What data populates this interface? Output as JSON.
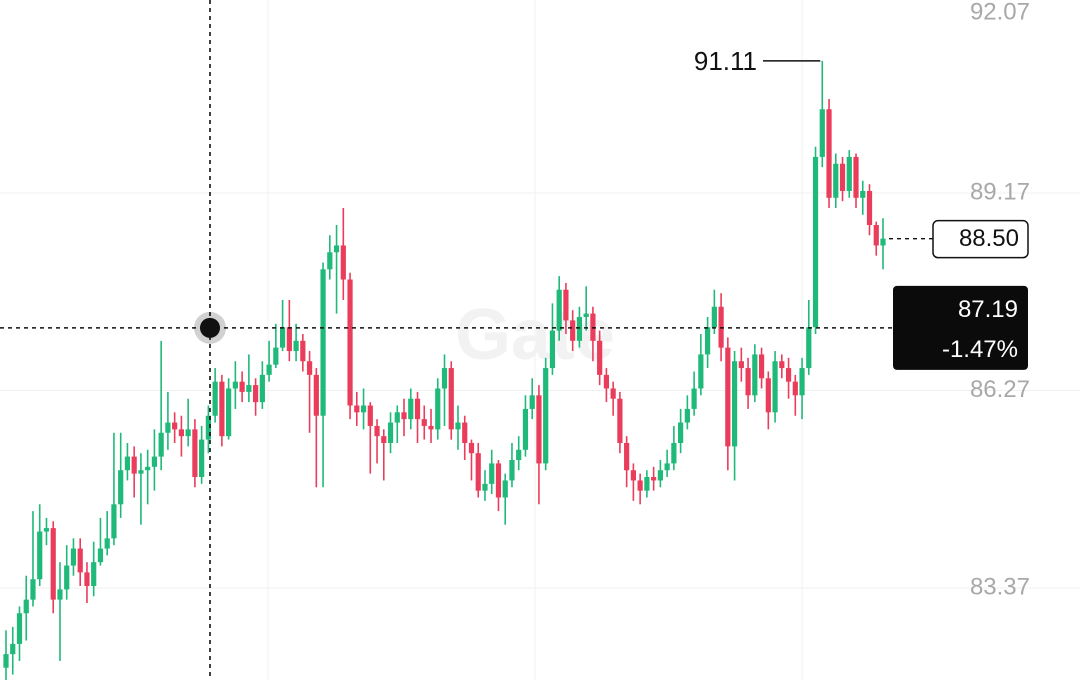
{
  "chart_data": {
    "type": "candlestick",
    "up_color": "#1fb97a",
    "down_color": "#ea3d5c",
    "ylim": [
      82.02,
      92.07
    ],
    "yticks": [
      92.07,
      89.17,
      86.27,
      83.37
    ],
    "grid": true,
    "watermark": "Gate",
    "max_label": 91.11,
    "last_price": {
      "value": 88.5,
      "label": "88.50"
    },
    "crosshair": {
      "price": 87.19,
      "change": {
        "value": -1.47,
        "label": "-1.47%"
      }
    },
    "candles": [
      [
        82.2,
        82.75,
        82.0,
        82.4
      ],
      [
        82.4,
        82.8,
        82.1,
        82.55
      ],
      [
        82.55,
        83.1,
        82.3,
        83.0
      ],
      [
        83.0,
        83.55,
        82.6,
        83.2
      ],
      [
        83.2,
        84.5,
        83.1,
        83.5
      ],
      [
        83.5,
        84.6,
        83.4,
        84.2
      ],
      [
        84.2,
        84.4,
        84.0,
        84.25
      ],
      [
        84.25,
        84.35,
        83.0,
        83.2
      ],
      [
        83.2,
        83.75,
        82.3,
        83.35
      ],
      [
        83.35,
        84.0,
        83.2,
        83.7
      ],
      [
        83.7,
        84.1,
        83.55,
        83.95
      ],
      [
        83.95,
        84.1,
        83.4,
        83.6
      ],
      [
        83.6,
        83.75,
        83.15,
        83.4
      ],
      [
        83.4,
        84.05,
        83.25,
        83.75
      ],
      [
        83.75,
        84.4,
        83.7,
        83.95
      ],
      [
        83.95,
        84.5,
        83.85,
        84.1
      ],
      [
        84.1,
        85.65,
        84.0,
        84.6
      ],
      [
        84.6,
        85.65,
        84.4,
        85.1
      ],
      [
        85.1,
        85.5,
        84.95,
        85.3
      ],
      [
        85.3,
        85.45,
        84.7,
        85.05
      ],
      [
        85.05,
        85.35,
        84.3,
        85.1
      ],
      [
        85.1,
        85.4,
        84.6,
        85.15
      ],
      [
        85.15,
        85.7,
        84.8,
        85.3
      ],
      [
        85.3,
        87.0,
        85.1,
        85.65
      ],
      [
        85.65,
        86.25,
        85.4,
        85.8
      ],
      [
        85.8,
        85.95,
        85.5,
        85.7
      ],
      [
        85.7,
        85.9,
        85.3,
        85.6
      ],
      [
        85.6,
        86.15,
        85.45,
        85.7
      ],
      [
        85.7,
        85.85,
        84.85,
        85.0
      ],
      [
        85.0,
        85.75,
        84.9,
        85.55
      ],
      [
        85.55,
        86.05,
        85.35,
        85.9
      ],
      [
        85.9,
        86.6,
        85.8,
        86.4
      ],
      [
        86.4,
        86.5,
        85.45,
        85.6
      ],
      [
        85.6,
        86.45,
        85.55,
        86.3
      ],
      [
        86.3,
        86.7,
        86.0,
        86.4
      ],
      [
        86.4,
        86.55,
        86.1,
        86.25
      ],
      [
        86.25,
        86.8,
        86.1,
        86.35
      ],
      [
        86.35,
        86.45,
        85.9,
        86.1
      ],
      [
        86.1,
        86.7,
        86.0,
        86.5
      ],
      [
        86.5,
        87.0,
        86.4,
        86.65
      ],
      [
        86.65,
        87.25,
        86.6,
        86.9
      ],
      [
        86.9,
        87.6,
        86.85,
        87.2
      ],
      [
        87.2,
        87.6,
        86.7,
        86.85
      ],
      [
        86.85,
        87.25,
        86.7,
        87.0
      ],
      [
        87.0,
        87.1,
        86.55,
        86.7
      ],
      [
        86.7,
        86.85,
        85.65,
        86.5
      ],
      [
        86.5,
        86.6,
        84.85,
        85.9
      ],
      [
        85.9,
        88.15,
        84.85,
        88.05
      ],
      [
        88.05,
        88.55,
        87.9,
        88.3
      ],
      [
        88.3,
        88.7,
        87.4,
        88.4
      ],
      [
        88.4,
        88.95,
        87.6,
        87.9
      ],
      [
        87.9,
        88.0,
        85.85,
        86.05
      ],
      [
        86.05,
        86.25,
        85.75,
        85.95
      ],
      [
        85.95,
        86.3,
        85.7,
        86.05
      ],
      [
        86.05,
        86.1,
        85.05,
        85.75
      ],
      [
        85.75,
        85.85,
        85.2,
        85.6
      ],
      [
        85.6,
        85.7,
        84.95,
        85.5
      ],
      [
        85.5,
        85.95,
        85.35,
        85.8
      ],
      [
        85.8,
        86.05,
        85.5,
        85.95
      ],
      [
        85.95,
        86.15,
        85.6,
        85.85
      ],
      [
        85.85,
        86.3,
        85.7,
        86.15
      ],
      [
        86.15,
        86.25,
        85.5,
        85.85
      ],
      [
        85.85,
        86.05,
        85.55,
        85.75
      ],
      [
        85.75,
        86.0,
        85.5,
        85.7
      ],
      [
        85.7,
        86.45,
        85.55,
        86.3
      ],
      [
        86.3,
        86.8,
        85.75,
        86.6
      ],
      [
        86.6,
        86.7,
        85.55,
        85.7
      ],
      [
        85.7,
        86.05,
        85.4,
        85.8
      ],
      [
        85.8,
        85.9,
        85.25,
        85.5
      ],
      [
        85.5,
        85.55,
        84.95,
        85.35
      ],
      [
        85.35,
        85.5,
        84.7,
        84.8
      ],
      [
        84.8,
        85.1,
        84.65,
        84.9
      ],
      [
        84.9,
        85.4,
        84.75,
        85.2
      ],
      [
        85.2,
        85.25,
        84.5,
        84.7
      ],
      [
        84.7,
        85.05,
        84.3,
        84.95
      ],
      [
        84.95,
        85.5,
        84.85,
        85.25
      ],
      [
        85.25,
        85.6,
        85.1,
        85.4
      ],
      [
        85.4,
        86.2,
        85.3,
        86.0
      ],
      [
        86.0,
        86.45,
        85.85,
        86.2
      ],
      [
        86.2,
        86.35,
        84.6,
        85.2
      ],
      [
        85.2,
        86.75,
        85.1,
        86.6
      ],
      [
        86.6,
        87.55,
        86.5,
        87.15
      ],
      [
        87.15,
        87.95,
        87.0,
        87.75
      ],
      [
        87.75,
        87.85,
        87.1,
        87.3
      ],
      [
        87.3,
        87.45,
        86.85,
        87.0
      ],
      [
        87.0,
        87.5,
        86.9,
        87.35
      ],
      [
        87.35,
        87.8,
        87.15,
        87.4
      ],
      [
        87.4,
        87.5,
        86.7,
        87.0
      ],
      [
        87.0,
        87.15,
        86.35,
        86.5
      ],
      [
        86.5,
        86.6,
        86.1,
        86.3
      ],
      [
        86.3,
        86.4,
        85.9,
        86.15
      ],
      [
        86.15,
        86.25,
        85.35,
        85.5
      ],
      [
        85.5,
        85.6,
        84.85,
        85.1
      ],
      [
        85.1,
        85.2,
        84.65,
        84.95
      ],
      [
        84.95,
        85.05,
        84.6,
        84.8
      ],
      [
        84.8,
        85.1,
        84.7,
        85.0
      ],
      [
        85.0,
        85.15,
        84.8,
        84.95
      ],
      [
        84.95,
        85.25,
        84.85,
        85.1
      ],
      [
        85.1,
        85.4,
        85.0,
        85.2
      ],
      [
        85.2,
        85.75,
        85.1,
        85.5
      ],
      [
        85.5,
        86.0,
        85.35,
        85.8
      ],
      [
        85.8,
        86.2,
        85.7,
        86.0
      ],
      [
        86.0,
        86.55,
        85.9,
        86.3
      ],
      [
        86.3,
        87.1,
        86.2,
        86.8
      ],
      [
        86.8,
        87.35,
        86.6,
        87.2
      ],
      [
        87.2,
        87.75,
        87.1,
        87.5
      ],
      [
        87.5,
        87.7,
        86.7,
        86.9
      ],
      [
        86.9,
        87.05,
        85.1,
        85.45
      ],
      [
        85.45,
        86.85,
        84.95,
        86.7
      ],
      [
        86.7,
        86.9,
        86.4,
        86.6
      ],
      [
        86.6,
        86.75,
        86.0,
        86.2
      ],
      [
        86.2,
        86.95,
        86.1,
        86.8
      ],
      [
        86.8,
        86.9,
        86.3,
        86.45
      ],
      [
        86.45,
        86.55,
        85.7,
        85.95
      ],
      [
        85.95,
        86.85,
        85.8,
        86.7
      ],
      [
        86.7,
        86.8,
        86.45,
        86.6
      ],
      [
        86.6,
        86.75,
        86.15,
        86.4
      ],
      [
        86.4,
        86.5,
        85.9,
        86.2
      ],
      [
        86.2,
        86.75,
        85.85,
        86.6
      ],
      [
        86.6,
        87.6,
        86.5,
        87.2
      ],
      [
        87.2,
        89.85,
        87.1,
        89.7
      ],
      [
        89.7,
        91.11,
        89.55,
        90.4
      ],
      [
        90.4,
        90.55,
        88.95,
        89.1
      ],
      [
        89.1,
        89.75,
        88.95,
        89.6
      ],
      [
        89.6,
        89.7,
        89.05,
        89.2
      ],
      [
        89.2,
        89.8,
        89.1,
        89.7
      ],
      [
        89.7,
        89.75,
        88.95,
        89.1
      ],
      [
        89.1,
        89.35,
        88.85,
        89.2
      ],
      [
        89.2,
        89.3,
        88.55,
        88.7
      ],
      [
        88.7,
        88.75,
        88.25,
        88.4
      ],
      [
        88.4,
        88.8,
        88.05,
        88.5
      ]
    ]
  }
}
